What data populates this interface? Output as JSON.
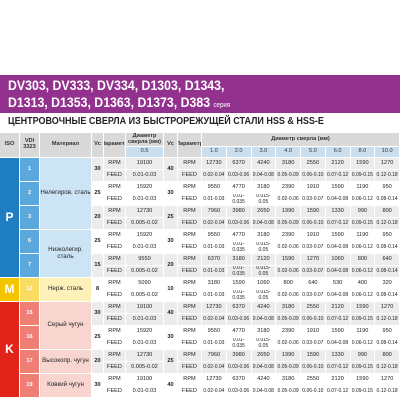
{
  "header": {
    "title_line1": "DV303, DV333, DV334, D1303, D1343,",
    "title_line2": "D1313, D1353, D1363, D1373, D383",
    "series_label": "серия"
  },
  "subtitle": "ЦЕНТРОВОЧНЫЕ СВЕРЛА ИЗ БЫСТРОРЕЖУЩЕЙ СТАЛИ HSS & HSS-E",
  "table": {
    "columns": {
      "iso": "ISO",
      "vdi": "VDI 3323",
      "material": "Материал",
      "vc": "Vc",
      "param": "Параметр",
      "diameter": "Диаметр сверла (мм)"
    },
    "small_diameters": [
      "0.5"
    ],
    "diameters": [
      "1.0",
      "2.0",
      "3.0",
      "4.0",
      "5.0",
      "6.0",
      "8.0",
      "10.0"
    ],
    "param_names": [
      "RPM",
      "FEED"
    ],
    "groups": [
      {
        "iso": "P",
        "color": "#1f7dc1",
        "vdi_color": "#5aa8dc",
        "material_color": "#cde4f5",
        "materials": [
          {
            "name": "Нелегиров. сталь",
            "rows": [
              {
                "vdi": "1",
                "vc_small": "30",
                "rpm_small": "19100",
                "feed_small": "0.01-0.03",
                "vc": "40",
                "rpm": [
                  "12730",
                  "6370",
                  "4240",
                  "3180",
                  "2550",
                  "2120",
                  "1590",
                  "1270"
                ],
                "feed": [
                  "0.02-0.04",
                  "0.03-0.06",
                  "0.04-0.08",
                  "0.05-0.09",
                  "0.06-0.10",
                  "0.07-0.12",
                  "0.09-0.15",
                  "0.12-0.18"
                ]
              },
              {
                "vdi": "2",
                "vc_small": "25",
                "rpm_small": "15920",
                "feed_small": "0.01-0.03",
                "vc": "30",
                "rpm": [
                  "9550",
                  "4770",
                  "3180",
                  "2390",
                  "1910",
                  "1590",
                  "1190",
                  "950"
                ],
                "feed": [
                  "0.01-0.03",
                  "0.01-0.035",
                  "0.015-0.05",
                  "0.02-0.06",
                  "0.03-0.07",
                  "0.04-0.08",
                  "0.06-0.12",
                  "0.08-0.14"
                ]
              },
              {
                "vdi": "3",
                "vc_small": "20",
                "rpm_small": "12730",
                "feed_small": "0.005-0.02",
                "vc": "25",
                "rpm": [
                  "7960",
                  "3980",
                  "2650",
                  "1990",
                  "1590",
                  "1330",
                  "990",
                  "800"
                ],
                "feed": [
                  "0.02-0.04",
                  "0.03-0.06",
                  "0.04-0.08",
                  "0.05-0.09",
                  "0.06-0.10",
                  "0.07-0.12",
                  "0.09-0.15",
                  "0.12-0.18"
                ]
              }
            ]
          },
          {
            "name": "Низколегир. сталь",
            "rows": [
              {
                "vdi": "6",
                "vc_small": "25",
                "rpm_small": "15920",
                "feed_small": "0.01-0.03",
                "vc": "30",
                "rpm": [
                  "9550",
                  "4770",
                  "3180",
                  "2390",
                  "1910",
                  "1590",
                  "1190",
                  "950"
                ],
                "feed": [
                  "0.01-0.03",
                  "0.01-0.035",
                  "0.015-0.05",
                  "0.02-0.06",
                  "0.03-0.07",
                  "0.04-0.08",
                  "0.06-0.12",
                  "0.08-0.14"
                ]
              },
              {
                "vdi": "7",
                "vc_small": "15",
                "rpm_small": "9550",
                "feed_small": "0.005-0.02",
                "vc": "20",
                "rpm": [
                  "6370",
                  "3180",
                  "2120",
                  "1590",
                  "1270",
                  "1060",
                  "800",
                  "640"
                ],
                "feed": [
                  "0.01-0.03",
                  "0.01-0.035",
                  "0.015-0.05",
                  "0.02-0.06",
                  "0.03-0.07",
                  "0.04-0.08",
                  "0.06-0.12",
                  "0.08-0.14"
                ]
              }
            ]
          }
        ]
      },
      {
        "iso": "M",
        "color": "#f5c400",
        "vdi_color": "#fbdc63",
        "material_color": "#fdf0b8",
        "materials": [
          {
            "name": "Нерж. сталь",
            "rows": [
              {
                "vdi": "12",
                "vc_small": "8",
                "rpm_small": "5090",
                "feed_small": "0.005-0.02",
                "vc": "10",
                "rpm": [
                  "3180",
                  "1590",
                  "1060",
                  "800",
                  "640",
                  "530",
                  "400",
                  "320"
                ],
                "feed": [
                  "0.01-0.03",
                  "0.01-0.035",
                  "0.015-0.05",
                  "0.02-0.06",
                  "0.03-0.07",
                  "0.04-0.08",
                  "0.06-0.12",
                  "0.08-0.14"
                ]
              }
            ]
          }
        ]
      },
      {
        "iso": "K",
        "color": "#e2231a",
        "vdi_color": "#ef7f74",
        "material_color": "#f9d5d0",
        "materials": [
          {
            "name": "Серый чугун",
            "rows": [
              {
                "vdi": "15",
                "vc_small": "30",
                "rpm_small": "19100",
                "feed_small": "0.01-0.03",
                "vc": "40",
                "rpm": [
                  "12730",
                  "6370",
                  "4240",
                  "3180",
                  "2550",
                  "2120",
                  "1590",
                  "1270"
                ],
                "feed": [
                  "0.02-0.04",
                  "0.03-0.06",
                  "0.04-0.08",
                  "0.05-0.09",
                  "0.06-0.10",
                  "0.07-0.12",
                  "0.09-0.15",
                  "0.12-0.18"
                ]
              },
              {
                "vdi": "16",
                "vc_small": "25",
                "rpm_small": "15920",
                "feed_small": "0.01-0.03",
                "vc": "30",
                "rpm": [
                  "9550",
                  "4770",
                  "3180",
                  "2390",
                  "1910",
                  "1590",
                  "1190",
                  "950"
                ],
                "feed": [
                  "0.01-0.03",
                  "0.01-0.035",
                  "0.015-0.05",
                  "0.02-0.06",
                  "0.03-0.07",
                  "0.04-0.08",
                  "0.06-0.12",
                  "0.08-0.14"
                ]
              }
            ]
          },
          {
            "name": "Высокопр. чугун",
            "rows": [
              {
                "vdi": "17",
                "vc_small": "20",
                "rpm_small": "12730",
                "feed_small": "0.005-0.02",
                "vc": "25",
                "rpm": [
                  "7960",
                  "3980",
                  "2650",
                  "1990",
                  "1590",
                  "1330",
                  "990",
                  "800"
                ],
                "feed": [
                  "0.02-0.04",
                  "0.03-0.06",
                  "0.04-0.08",
                  "0.05-0.09",
                  "0.06-0.10",
                  "0.07-0.12",
                  "0.09-0.15",
                  "0.12-0.18"
                ]
              }
            ]
          },
          {
            "name": "Ковкий чугун",
            "rows": [
              {
                "vdi": "19",
                "vc_small": "30",
                "rpm_small": "19100",
                "feed_small": "0.01-0.03",
                "vc": "40",
                "rpm": [
                  "12730",
                  "6370",
                  "4240",
                  "3180",
                  "2550",
                  "2120",
                  "1590",
                  "1270"
                ],
                "feed": [
                  "0.02-0.04",
                  "0.03-0.06",
                  "0.04-0.08",
                  "0.05-0.09",
                  "0.06-0.10",
                  "0.07-0.12",
                  "0.09-0.15",
                  "0.12-0.18"
                ]
              }
            ]
          }
        ]
      }
    ]
  }
}
